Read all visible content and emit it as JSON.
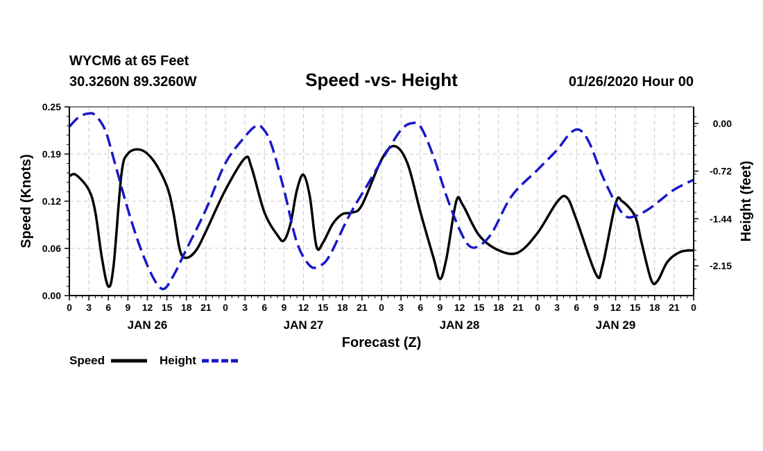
{
  "chart_data": {
    "type": "line",
    "title": "Speed -vs- Height",
    "station_line1": "WYCM6 at 65 Feet",
    "station_line2": "30.3260N 89.3260W",
    "date_label": "01/26/2020 Hour 00",
    "xlabel": "Forecast (Z)",
    "ylabel_left": "Speed (Knots)",
    "ylabel_right": "Height (feet)",
    "grid": true,
    "x_range_hours": [
      0,
      96
    ],
    "ylim_left": [
      0,
      0.25
    ],
    "ylim_right": [
      -2.6,
      0.25
    ],
    "left_ticks": [
      {
        "value": 0.0,
        "label": "0.00"
      },
      {
        "value": 0.0625,
        "label": "0.06"
      },
      {
        "value": 0.125,
        "label": "0.12"
      },
      {
        "value": 0.1875,
        "label": "0.19"
      },
      {
        "value": 0.25,
        "label": "0.25"
      }
    ],
    "right_ticks": [
      {
        "value": 0.0,
        "label": "0.00"
      },
      {
        "value": -0.72,
        "label": "-0.72"
      },
      {
        "value": -1.44,
        "label": "-1.44"
      },
      {
        "value": -2.15,
        "label": "-2.15"
      }
    ],
    "x_ticks": [
      {
        "hour": 0,
        "label": "0"
      },
      {
        "hour": 3,
        "label": "3"
      },
      {
        "hour": 6,
        "label": "6"
      },
      {
        "hour": 9,
        "label": "9"
      },
      {
        "hour": 12,
        "label": "12"
      },
      {
        "hour": 15,
        "label": "15"
      },
      {
        "hour": 18,
        "label": "18"
      },
      {
        "hour": 21,
        "label": "21"
      },
      {
        "hour": 24,
        "label": "0"
      },
      {
        "hour": 27,
        "label": "3"
      },
      {
        "hour": 30,
        "label": "6"
      },
      {
        "hour": 33,
        "label": "9"
      },
      {
        "hour": 36,
        "label": "12"
      },
      {
        "hour": 39,
        "label": "15"
      },
      {
        "hour": 42,
        "label": "18"
      },
      {
        "hour": 45,
        "label": "21"
      },
      {
        "hour": 48,
        "label": "0"
      },
      {
        "hour": 51,
        "label": "3"
      },
      {
        "hour": 54,
        "label": "6"
      },
      {
        "hour": 57,
        "label": "9"
      },
      {
        "hour": 60,
        "label": "12"
      },
      {
        "hour": 63,
        "label": "15"
      },
      {
        "hour": 66,
        "label": "18"
      },
      {
        "hour": 69,
        "label": "21"
      },
      {
        "hour": 72,
        "label": "0"
      },
      {
        "hour": 75,
        "label": "3"
      },
      {
        "hour": 78,
        "label": "6"
      },
      {
        "hour": 81,
        "label": "9"
      },
      {
        "hour": 84,
        "label": "12"
      },
      {
        "hour": 87,
        "label": "15"
      },
      {
        "hour": 90,
        "label": "18"
      },
      {
        "hour": 93,
        "label": "21"
      },
      {
        "hour": 96,
        "label": "0"
      }
    ],
    "day_labels": [
      {
        "hour": 12,
        "label": "JAN 26"
      },
      {
        "hour": 36,
        "label": "JAN 27"
      },
      {
        "hour": 60,
        "label": "JAN 28"
      },
      {
        "hour": 84,
        "label": "JAN 29"
      }
    ],
    "series": [
      {
        "name": "Speed",
        "axis": "left",
        "color": "#000000",
        "dash": "solid",
        "points": [
          [
            0,
            0.158
          ],
          [
            1,
            0.16
          ],
          [
            3,
            0.14
          ],
          [
            4,
            0.11
          ],
          [
            5,
            0.05
          ],
          [
            6,
            0.012
          ],
          [
            6.8,
            0.04
          ],
          [
            8,
            0.16
          ],
          [
            9,
            0.188
          ],
          [
            11,
            0.193
          ],
          [
            13,
            0.178
          ],
          [
            15,
            0.145
          ],
          [
            16,
            0.11
          ],
          [
            17,
            0.06
          ],
          [
            18,
            0.05
          ],
          [
            19.5,
            0.06
          ],
          [
            21,
            0.085
          ],
          [
            24,
            0.14
          ],
          [
            27,
            0.182
          ],
          [
            28,
            0.17
          ],
          [
            30,
            0.11
          ],
          [
            32,
            0.08
          ],
          [
            33,
            0.073
          ],
          [
            34,
            0.095
          ],
          [
            35,
            0.14
          ],
          [
            36,
            0.16
          ],
          [
            37,
            0.13
          ],
          [
            38,
            0.065
          ],
          [
            39,
            0.07
          ],
          [
            40.5,
            0.095
          ],
          [
            42,
            0.108
          ],
          [
            43.5,
            0.11
          ],
          [
            45,
            0.12
          ],
          [
            48,
            0.18
          ],
          [
            50,
            0.198
          ],
          [
            52,
            0.175
          ],
          [
            54,
            0.11
          ],
          [
            56,
            0.05
          ],
          [
            57,
            0.022
          ],
          [
            58,
            0.05
          ],
          [
            59.5,
            0.125
          ],
          [
            60.5,
            0.12
          ],
          [
            63,
            0.08
          ],
          [
            66,
            0.06
          ],
          [
            69,
            0.057
          ],
          [
            72,
            0.083
          ],
          [
            75,
            0.124
          ],
          [
            76.5,
            0.13
          ],
          [
            78,
            0.1
          ],
          [
            81,
            0.028
          ],
          [
            82,
            0.04
          ],
          [
            84,
            0.122
          ],
          [
            85,
            0.125
          ],
          [
            87,
            0.105
          ],
          [
            88,
            0.07
          ],
          [
            89.5,
            0.02
          ],
          [
            90.5,
            0.02
          ],
          [
            92,
            0.045
          ],
          [
            94,
            0.058
          ],
          [
            96,
            0.06
          ]
        ]
      },
      {
        "name": "Height",
        "axis": "right",
        "color": "#1818c8",
        "dash": "dashed",
        "points": [
          [
            0,
            -0.05
          ],
          [
            1.5,
            0.1
          ],
          [
            3,
            0.15
          ],
          [
            4,
            0.12
          ],
          [
            5.5,
            -0.1
          ],
          [
            7,
            -0.6
          ],
          [
            9,
            -1.3
          ],
          [
            11,
            -1.9
          ],
          [
            13,
            -2.35
          ],
          [
            14.5,
            -2.5
          ],
          [
            16,
            -2.3
          ],
          [
            18,
            -1.9
          ],
          [
            21,
            -1.3
          ],
          [
            24,
            -0.6
          ],
          [
            27,
            -0.2
          ],
          [
            28.5,
            -0.05
          ],
          [
            29.5,
            -0.05
          ],
          [
            31,
            -0.3
          ],
          [
            33,
            -1.0
          ],
          [
            35,
            -1.8
          ],
          [
            37,
            -2.15
          ],
          [
            38.5,
            -2.15
          ],
          [
            40,
            -2.0
          ],
          [
            43,
            -1.4
          ],
          [
            46,
            -0.9
          ],
          [
            49,
            -0.4
          ],
          [
            51,
            -0.1
          ],
          [
            52.5,
            0.0
          ],
          [
            54,
            -0.05
          ],
          [
            56,
            -0.5
          ],
          [
            58,
            -1.1
          ],
          [
            60,
            -1.6
          ],
          [
            61.5,
            -1.85
          ],
          [
            63,
            -1.85
          ],
          [
            65,
            -1.65
          ],
          [
            68,
            -1.1
          ],
          [
            72,
            -0.7
          ],
          [
            75,
            -0.4
          ],
          [
            77,
            -0.15
          ],
          [
            78.5,
            -0.1
          ],
          [
            80,
            -0.3
          ],
          [
            82,
            -0.8
          ],
          [
            84,
            -1.2
          ],
          [
            85.5,
            -1.4
          ],
          [
            87,
            -1.4
          ],
          [
            89,
            -1.3
          ],
          [
            91,
            -1.15
          ],
          [
            93,
            -1.0
          ],
          [
            96,
            -0.85
          ]
        ]
      }
    ],
    "legend": [
      {
        "label": "Speed",
        "color": "#000000",
        "dash": "solid"
      },
      {
        "label": "Height",
        "color": "#1818c8",
        "dash": "dashed"
      }
    ]
  }
}
